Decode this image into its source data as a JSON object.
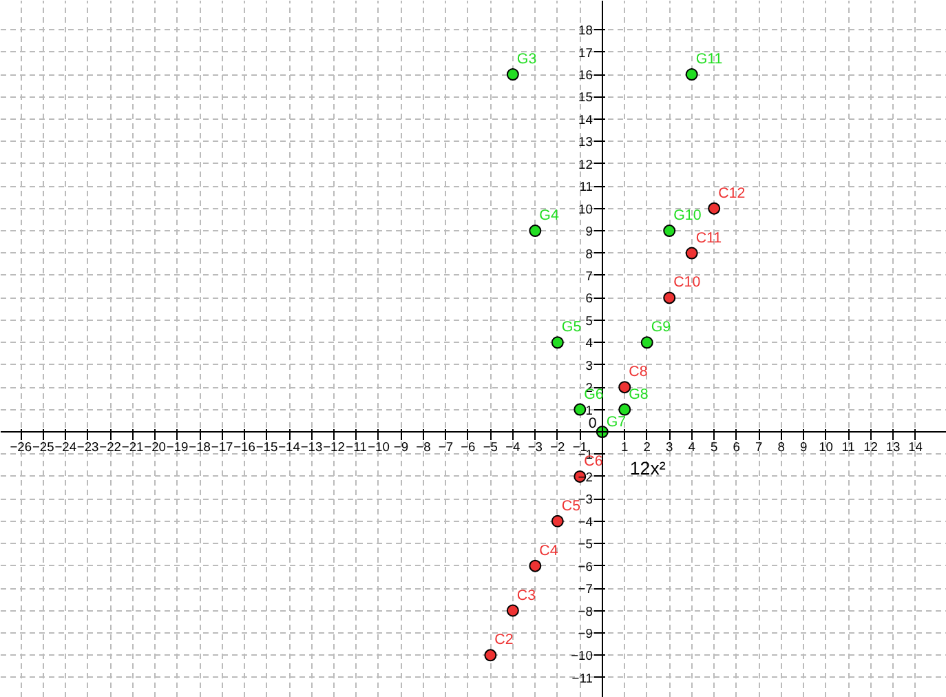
{
  "chart_data": {
    "type": "scatter",
    "marker": "circle",
    "grid": true,
    "xlim": [
      -26.9,
      15.4
    ],
    "ylim": [
      -11.9,
      19.3
    ],
    "xticks": [
      -26,
      -25,
      -24,
      -23,
      -22,
      -21,
      -20,
      -19,
      -18,
      -17,
      -16,
      -15,
      -14,
      -13,
      -12,
      -11,
      -10,
      -9,
      -8,
      -7,
      -6,
      -5,
      -4,
      -3,
      -2,
      -1,
      1,
      2,
      3,
      4,
      5,
      6,
      7,
      8,
      9,
      10,
      11,
      12,
      13,
      14
    ],
    "yticks": [
      -11,
      -10,
      -9,
      -8,
      -7,
      -6,
      -5,
      -4,
      -3,
      -2,
      -1,
      1,
      2,
      3,
      4,
      5,
      6,
      7,
      8,
      9,
      10,
      11,
      12,
      13,
      14,
      15,
      16,
      17,
      18
    ],
    "series": [
      {
        "color": "#22dd22",
        "x": [
          -4,
          -3,
          -2,
          -1,
          0,
          1,
          2,
          3,
          4
        ],
        "values": [
          16,
          9,
          4,
          1,
          0,
          1,
          4,
          9,
          16
        ]
      },
      {
        "color": "#ee3333",
        "x": [
          -5,
          -4,
          -3,
          -2,
          -1,
          1,
          3,
          4,
          5
        ],
        "values": [
          -10,
          -8,
          -6,
          -4,
          -2,
          2,
          6,
          8,
          10
        ]
      }
    ],
    "annotations": [
      {
        "text": "G3",
        "x": -4,
        "y": 16
      },
      {
        "text": "G4",
        "x": -3,
        "y": 9
      },
      {
        "text": "G5",
        "x": -2,
        "y": 4
      },
      {
        "text": "G6",
        "x": -1,
        "y": 1
      },
      {
        "text": "G7",
        "x": 0,
        "y": 0
      },
      {
        "text": "G8",
        "x": 1,
        "y": 1
      },
      {
        "text": "G9",
        "x": 2,
        "y": 4
      },
      {
        "text": "G10",
        "x": 3,
        "y": 9
      },
      {
        "text": "G11",
        "x": 4,
        "y": 16
      },
      {
        "text": "C2",
        "x": -5,
        "y": -10
      },
      {
        "text": "C3",
        "x": -4,
        "y": -8
      },
      {
        "text": "C4",
        "x": -3,
        "y": -6
      },
      {
        "text": "C5",
        "x": -2,
        "y": -4
      },
      {
        "text": "C6",
        "x": -1,
        "y": -2
      },
      {
        "text": "C8",
        "x": 1,
        "y": 2
      },
      {
        "text": "C10",
        "x": 3,
        "y": 6
      },
      {
        "text": "C11",
        "x": 4,
        "y": 8
      },
      {
        "text": "C12",
        "x": 5,
        "y": 10
      },
      "0",
      "12x²"
    ]
  }
}
